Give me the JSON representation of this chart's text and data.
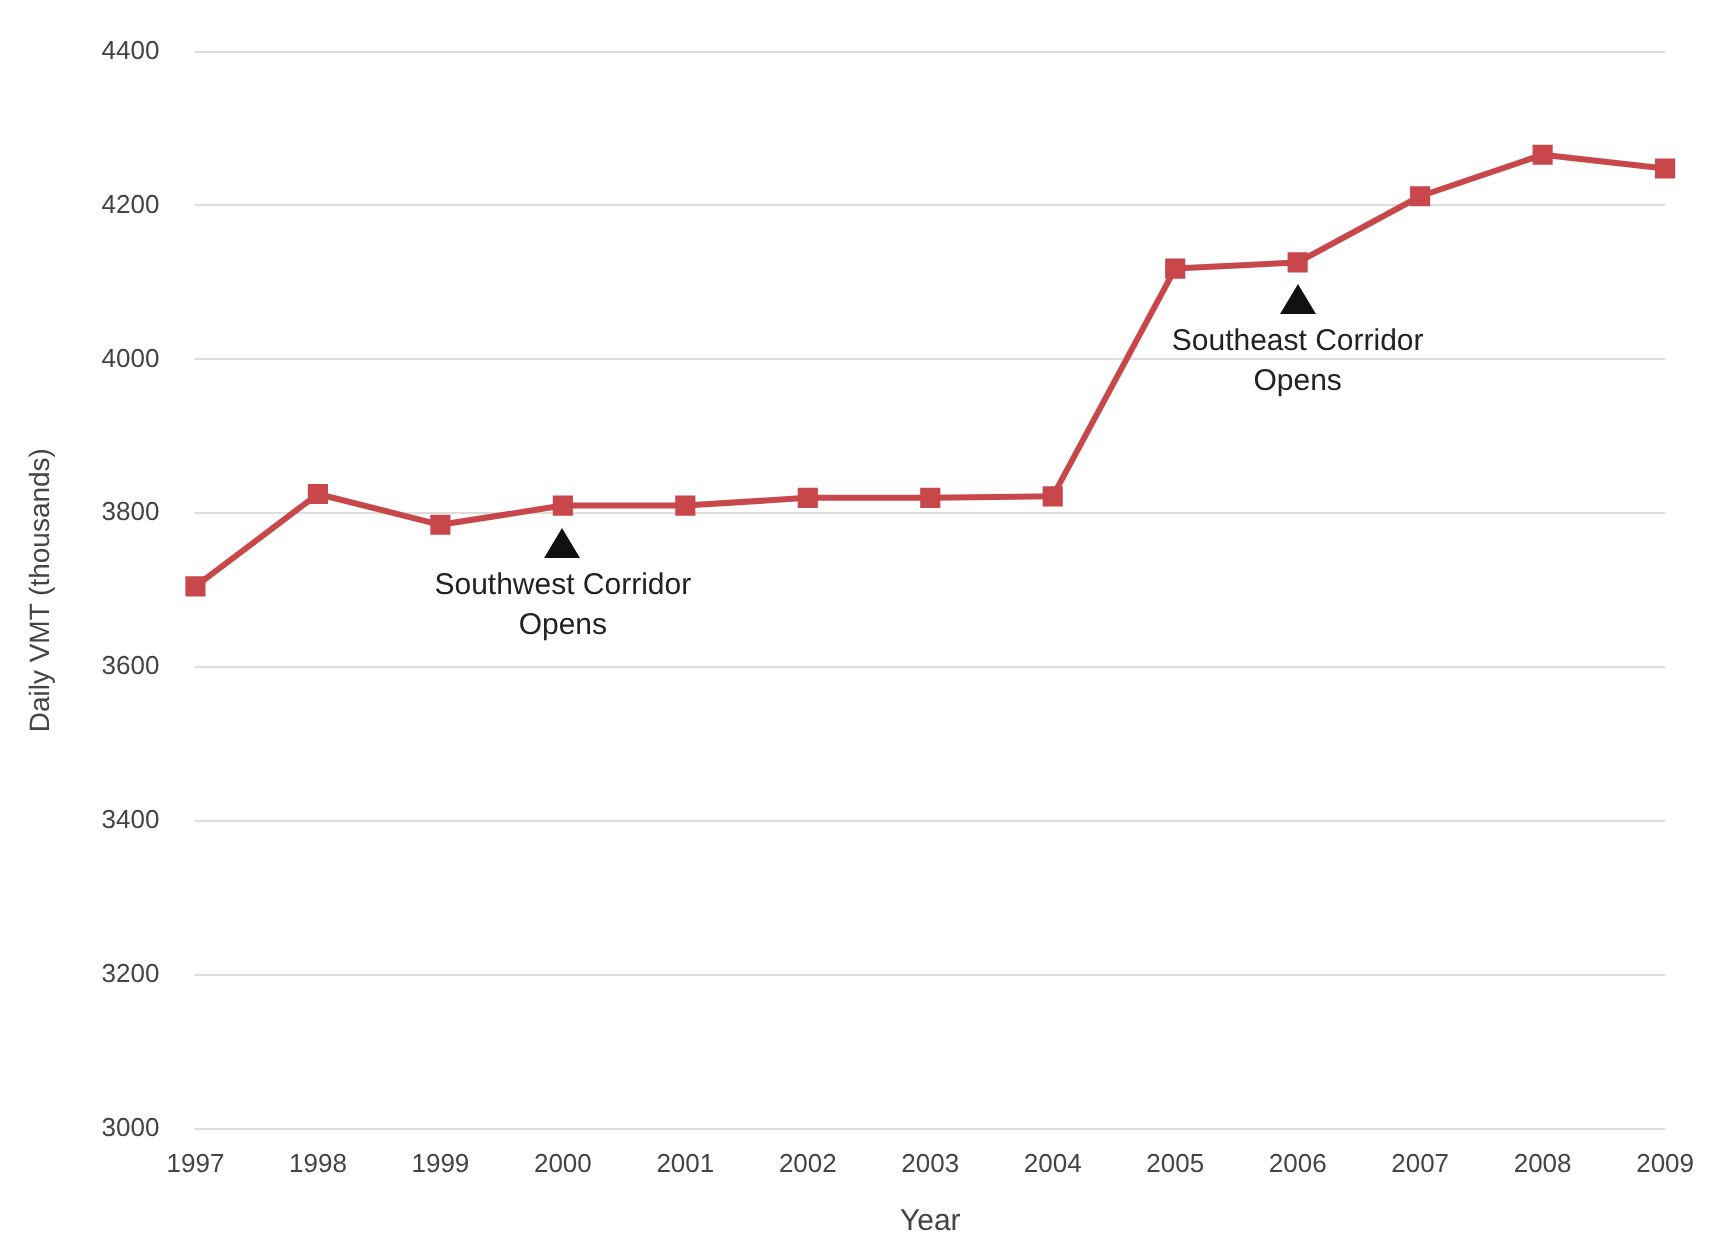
{
  "chart_data": {
    "type": "line",
    "xlabel": "Year",
    "ylabel": "Daily VMT (thousands)",
    "categories": [
      "1997",
      "1998",
      "1999",
      "2000",
      "2001",
      "2002",
      "2003",
      "2004",
      "2005",
      "2006",
      "2007",
      "2008",
      "2009"
    ],
    "series": [
      {
        "color": "#c8474a",
        "values": [
          3705,
          3825,
          3785,
          3810,
          3810,
          3820,
          3820,
          3822,
          4118,
          4126,
          4212,
          4266,
          4248
        ]
      }
    ],
    "ylim": [
      3000,
      4400
    ],
    "yticks": [
      3000,
      3200,
      3400,
      3600,
      3800,
      4000,
      4200,
      4400
    ],
    "grid": "y",
    "legend": false,
    "marker": "square",
    "line_style": "solid",
    "annotations": [
      {
        "text": "Southwest Corridor Opens",
        "x": "2000",
        "y": 3810
      },
      {
        "text": "Southeast Corridor Opens",
        "x": "2006",
        "y": 4126
      }
    ]
  }
}
